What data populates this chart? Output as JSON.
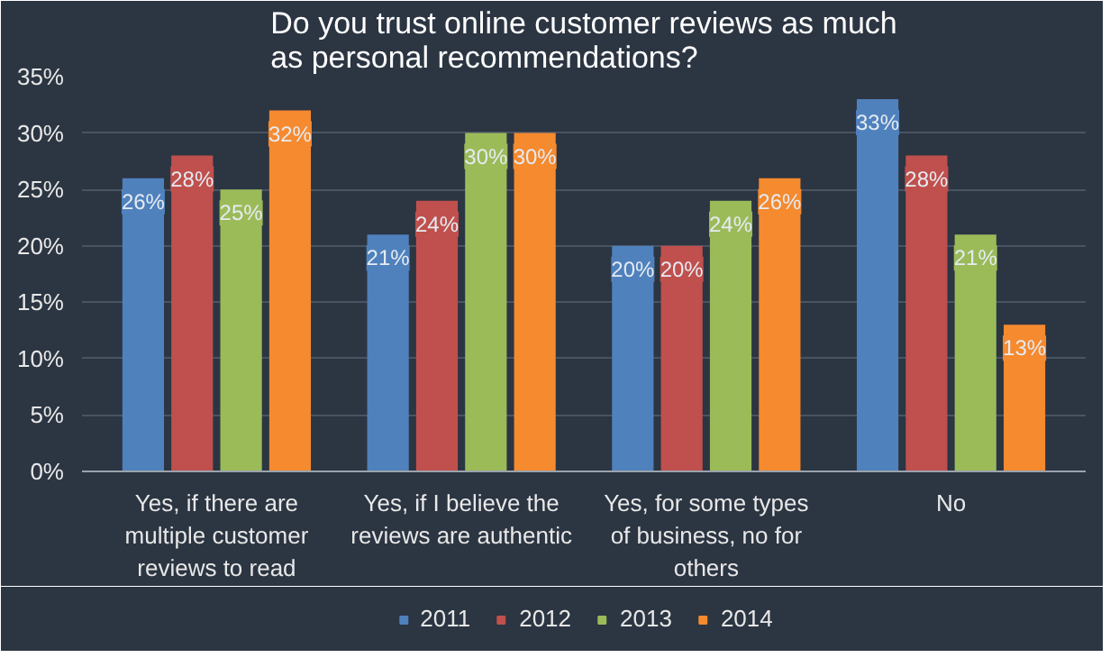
{
  "chart_data": {
    "type": "bar",
    "title": "Do you trust online customer reviews as much as personal recommendations?",
    "categories": [
      "Yes, if there are\nmultiple customer\nreviews to read",
      "Yes, if I believe the\nreviews are authentic",
      "Yes, for some types\nof business, no for\nothers",
      "No"
    ],
    "series": [
      {
        "name": "2011",
        "color": "#4f81bd",
        "values": [
          26,
          21,
          20,
          33
        ]
      },
      {
        "name": "2012",
        "color": "#c0504d",
        "values": [
          28,
          24,
          20,
          28
        ]
      },
      {
        "name": "2013",
        "color": "#9bbb59",
        "values": [
          25,
          30,
          24,
          21
        ]
      },
      {
        "name": "2014",
        "color": "#f58a2f",
        "values": [
          32,
          30,
          26,
          13
        ]
      }
    ],
    "ylim": [
      0,
      35
    ],
    "yticks": [
      {
        "value": 0,
        "label": "0%"
      },
      {
        "value": 5,
        "label": "5%"
      },
      {
        "value": 10,
        "label": "10%"
      },
      {
        "value": 15,
        "label": "15%"
      },
      {
        "value": 20,
        "label": "20%"
      },
      {
        "value": 25,
        "label": "25%"
      },
      {
        "value": 30,
        "label": "30%"
      },
      {
        "value": 35,
        "label": "35%"
      }
    ],
    "value_labels": [
      [
        "26%",
        "21%",
        "20%",
        "33%"
      ],
      [
        "28%",
        "24%",
        "20%",
        "28%"
      ],
      [
        "25%",
        "30%",
        "24%",
        "21%"
      ],
      [
        "32%",
        "30%",
        "26%",
        "13%"
      ]
    ],
    "grid": "y",
    "legend": "bottom"
  }
}
